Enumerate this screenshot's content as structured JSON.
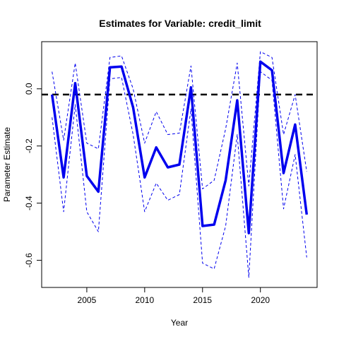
{
  "chart_data": {
    "type": "line",
    "title": "Estimates for Variable: credit_limit",
    "xlabel": "Year",
    "ylabel": "Parameter Estimate",
    "xlim": [
      2001.1,
      2024.9
    ],
    "ylim": [
      -0.695,
      0.165
    ],
    "x_ticks": [
      2005,
      2010,
      2015,
      2020
    ],
    "y_ticks": [
      0.0,
      -0.2,
      -0.4,
      -0.6
    ],
    "x_tick_labels": [
      "2005",
      "2010",
      "2015",
      "2020"
    ],
    "y_tick_labels": [
      "0.0",
      "-0.2",
      "-0.4",
      "-0.6"
    ],
    "x": [
      2002,
      2003,
      2004,
      2005,
      2006,
      2007,
      2008,
      2009,
      2010,
      2011,
      2012,
      2013,
      2014,
      2015,
      2016,
      2017,
      2018,
      2019,
      2020,
      2021,
      2022,
      2023,
      2024
    ],
    "series": [
      {
        "role": "estimate",
        "color": "#0000ee",
        "values": [
          -0.02,
          -0.31,
          0.02,
          -0.305,
          -0.36,
          0.075,
          0.078,
          -0.065,
          -0.31,
          -0.205,
          -0.275,
          -0.265,
          0.005,
          -0.48,
          -0.475,
          -0.32,
          -0.04,
          -0.505,
          0.095,
          0.065,
          -0.295,
          -0.125,
          -0.44
        ]
      },
      {
        "role": "upper",
        "color": "#0000ee",
        "values": [
          0.06,
          -0.18,
          0.09,
          -0.19,
          -0.21,
          0.11,
          0.115,
          0.0,
          -0.19,
          -0.08,
          -0.16,
          -0.155,
          0.08,
          -0.35,
          -0.32,
          -0.14,
          0.09,
          -0.34,
          0.13,
          0.11,
          -0.16,
          -0.02,
          -0.29
        ]
      },
      {
        "role": "lower",
        "color": "#0000ee",
        "values": [
          -0.1,
          -0.43,
          -0.055,
          -0.43,
          -0.5,
          0.035,
          0.04,
          -0.16,
          -0.43,
          -0.33,
          -0.39,
          -0.37,
          -0.07,
          -0.61,
          -0.63,
          -0.48,
          -0.16,
          -0.66,
          0.06,
          0.03,
          -0.42,
          -0.23,
          -0.59
        ]
      }
    ],
    "reference_line": {
      "y": -0.02,
      "style": "dashed",
      "color": "#000000"
    },
    "grid": false,
    "legend": "none"
  }
}
